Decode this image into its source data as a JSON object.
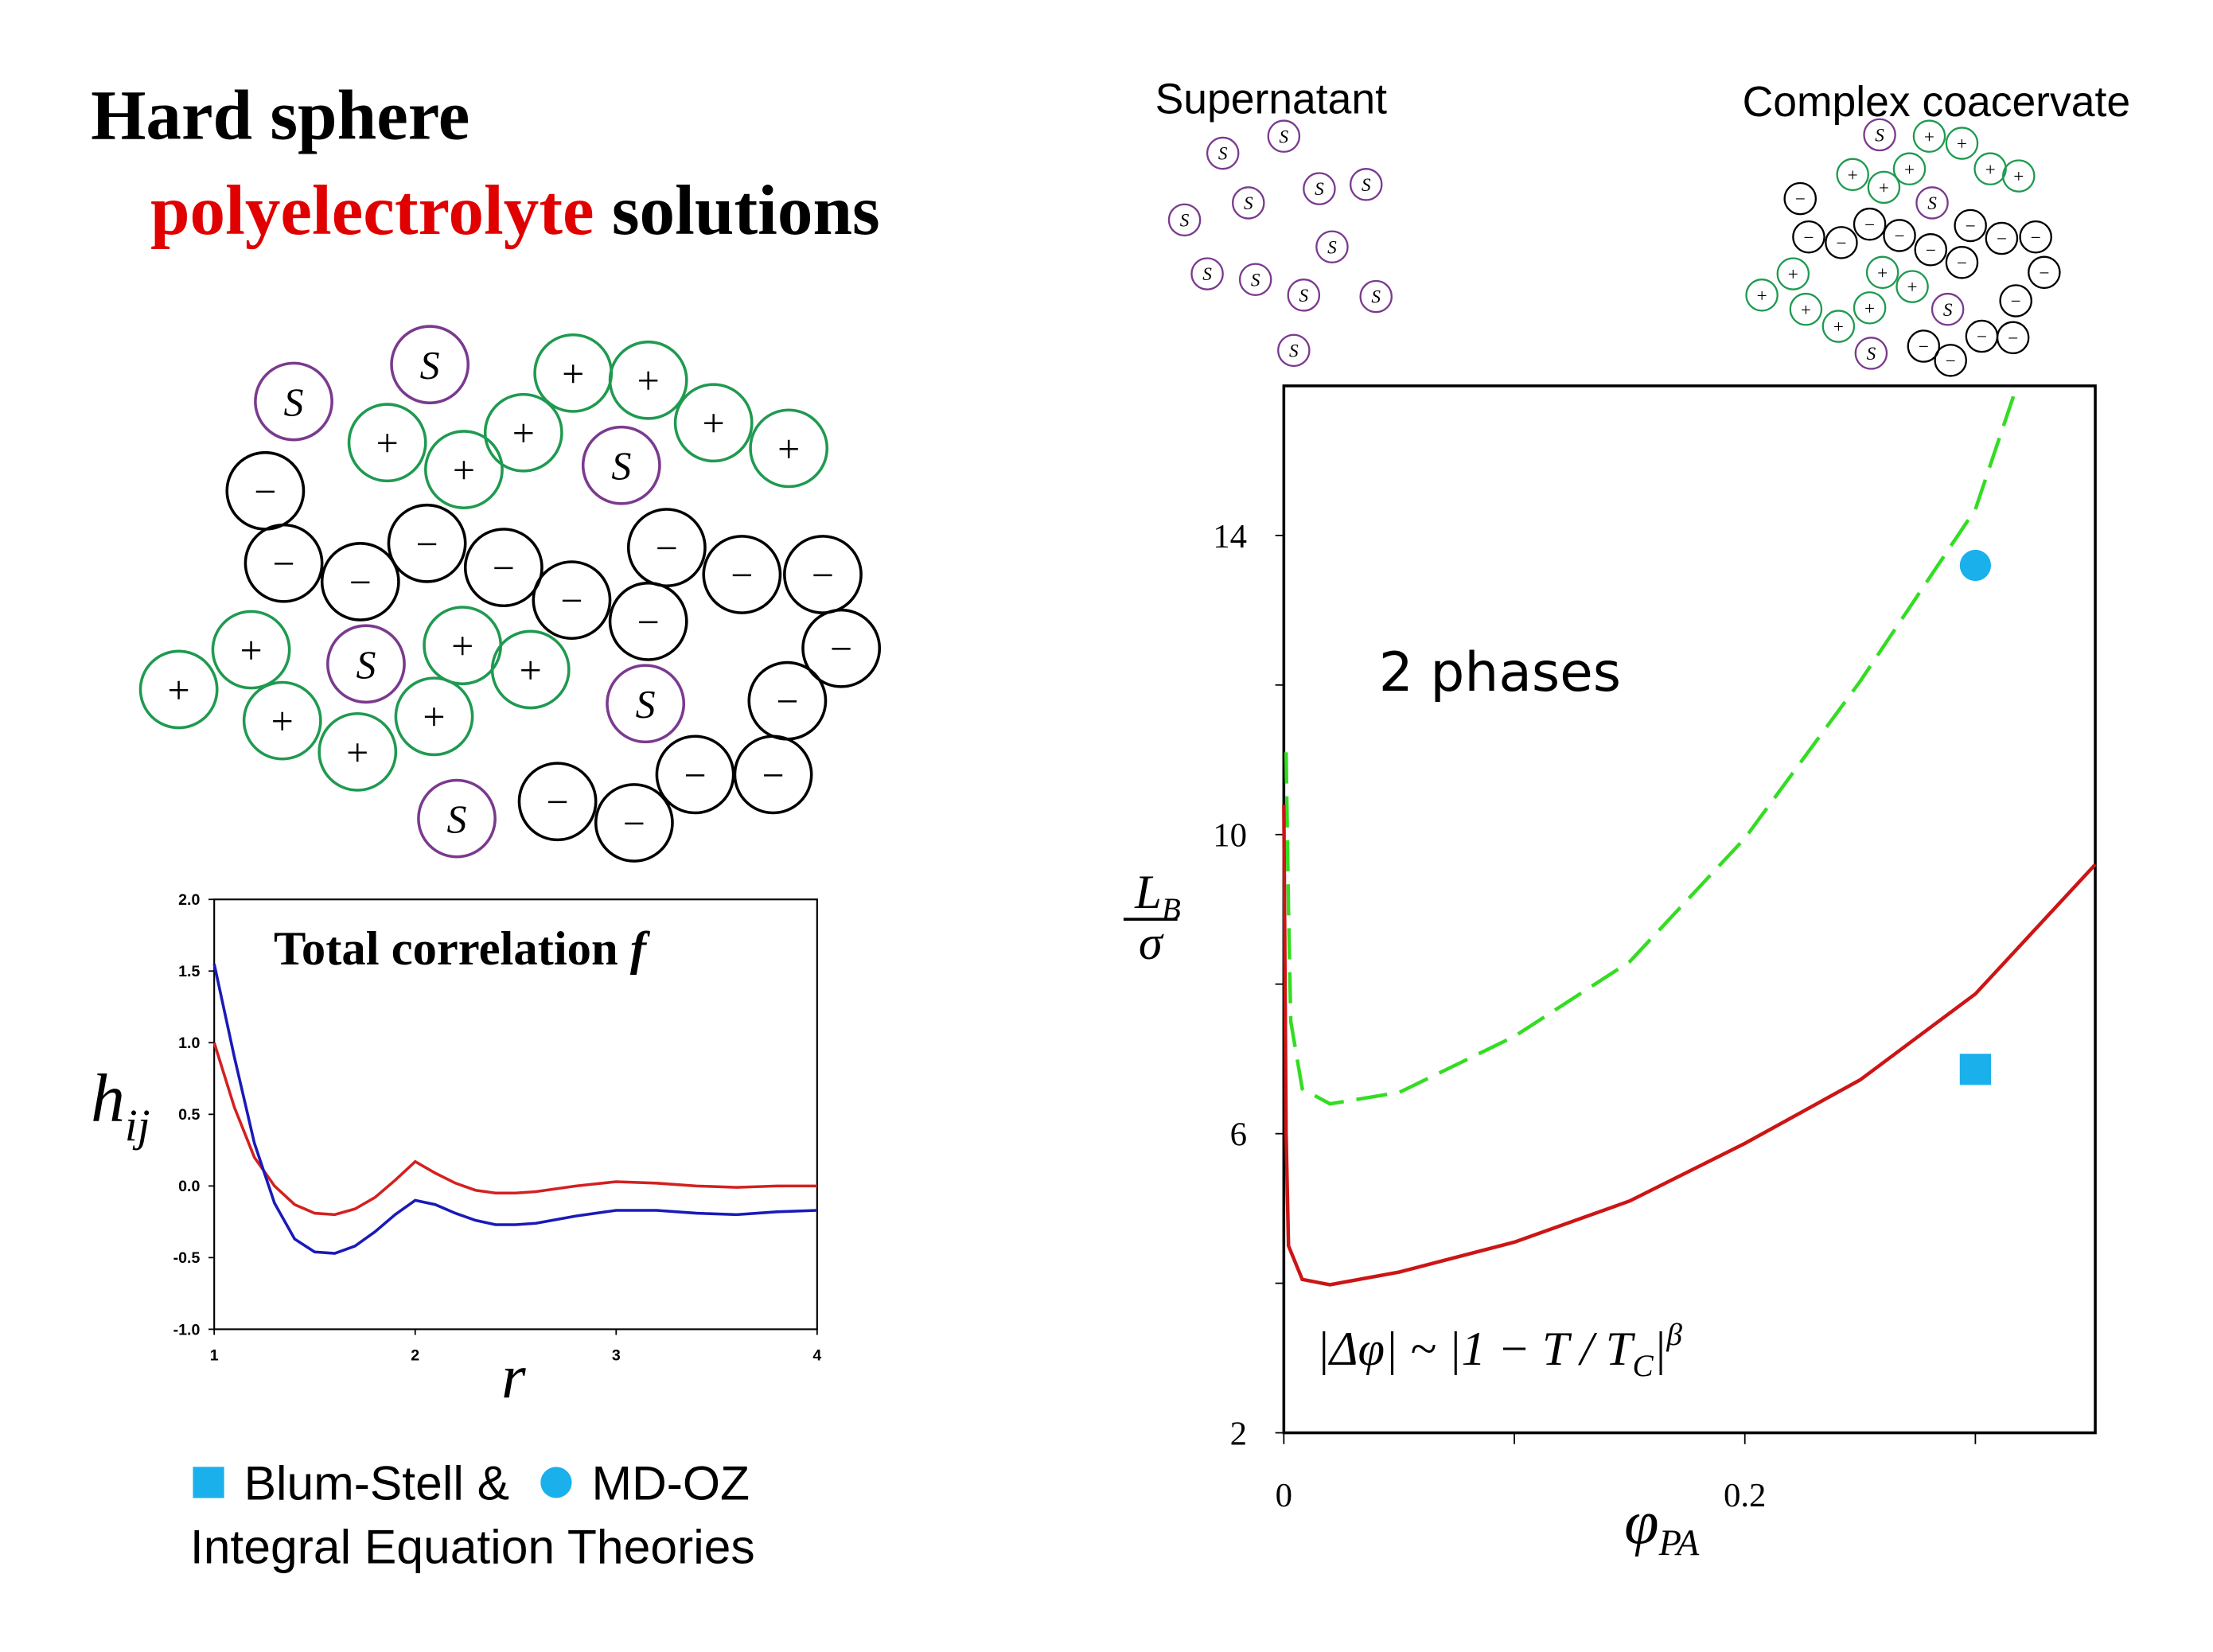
{
  "title": {
    "line1": "Hard sphere",
    "highlight": "polyelectrolyte",
    "rest": "solutions"
  },
  "phase_labels": {
    "left": "Supernatant",
    "right": "Complex coacervate"
  },
  "particle_symbols": {
    "salt": "S",
    "cation": "+",
    "anion": "−"
  },
  "chart_data": [
    {
      "type": "line",
      "title": "Total correlation",
      "title_symbol": "f",
      "xlabel": "r",
      "ylabel": "h",
      "ylabel_subscript": "ij",
      "xlim": [
        1,
        4
      ],
      "xticks": [
        1,
        2,
        3,
        4
      ],
      "ylim": [
        -1,
        2
      ],
      "yticks": [
        {
          "value": -1,
          "label": "-1.0"
        },
        {
          "value": -0.5,
          "label": "-0.5"
        },
        {
          "value": 0,
          "label": "0.0"
        },
        {
          "value": 0.5,
          "label": "0.5"
        },
        {
          "value": 1,
          "label": "1.0"
        },
        {
          "value": 1.5,
          "label": "1.5"
        },
        {
          "value": 2,
          "label": "2.0"
        }
      ],
      "series": [
        {
          "color": "#d42020",
          "x": [
            1,
            1.1,
            1.2,
            1.3,
            1.4,
            1.5,
            1.6,
            1.7,
            1.8,
            1.9,
            2.0,
            2.1,
            2.2,
            2.3,
            2.4,
            2.5,
            2.6,
            2.8,
            3.0,
            3.2,
            3.4,
            3.6,
            3.8,
            4.0
          ],
          "values": [
            1.0,
            0.55,
            0.2,
            0.0,
            -0.13,
            -0.19,
            -0.2,
            -0.16,
            -0.08,
            0.04,
            0.17,
            0.09,
            0.02,
            -0.03,
            -0.05,
            -0.05,
            -0.04,
            0.0,
            0.03,
            0.02,
            0.0,
            -0.01,
            0.0,
            0.0
          ]
        },
        {
          "color": "#1a1ab8",
          "x": [
            1,
            1.1,
            1.2,
            1.3,
            1.4,
            1.5,
            1.6,
            1.7,
            1.8,
            1.9,
            2.0,
            2.1,
            2.2,
            2.3,
            2.4,
            2.5,
            2.6,
            2.8,
            3.0,
            3.2,
            3.4,
            3.6,
            3.8,
            4.0
          ],
          "values": [
            1.55,
            0.9,
            0.3,
            -0.12,
            -0.37,
            -0.46,
            -0.47,
            -0.42,
            -0.32,
            -0.2,
            -0.1,
            -0.13,
            -0.19,
            -0.24,
            -0.27,
            -0.27,
            -0.26,
            -0.21,
            -0.17,
            -0.17,
            -0.19,
            -0.2,
            -0.18,
            -0.17
          ]
        }
      ]
    },
    {
      "type": "line",
      "annotation": "2 phases",
      "formula": {
        "main": "|Δφ| ~ |1 − T / T",
        "subscript": "C",
        "close": "|",
        "superscript": "β"
      },
      "xlabel": "φ",
      "xlabel_subscript": "PA",
      "ylabel": "L",
      "ylabel_subscript": "B",
      "ylabel_denominator": "σ",
      "xlim": [
        0,
        0.352
      ],
      "xticks": [
        0,
        0.2
      ],
      "xminor_ticks": [
        0.1,
        0.3
      ],
      "ylim": [
        2,
        16
      ],
      "yticks": [
        2,
        6,
        10,
        14
      ],
      "yminor_ticks": [
        4,
        8,
        12
      ],
      "series": [
        {
          "color": "#33dd22",
          "dashed": true,
          "x": [
            0.001,
            0.002,
            0.003,
            0.008,
            0.02,
            0.05,
            0.1,
            0.15,
            0.2,
            0.25,
            0.3,
            0.318
          ],
          "values": [
            11.1,
            9,
            7.5,
            6.6,
            6.4,
            6.55,
            7.3,
            8.3,
            9.95,
            12.05,
            14.35,
            16
          ]
        },
        {
          "color": "#cc1515",
          "dashed": false,
          "x": [
            0,
            0.001,
            0.002,
            0.008,
            0.02,
            0.05,
            0.1,
            0.15,
            0.2,
            0.25,
            0.3,
            0.352
          ],
          "values": [
            10.4,
            6,
            4.5,
            4.05,
            3.98,
            4.15,
            4.55,
            5.1,
            5.87,
            6.72,
            7.87,
            9.6
          ]
        },
        {
          "name": "Blum-Stell &",
          "marker": "square",
          "color": "#1ab0ec",
          "x": [
            0.3
          ],
          "values": [
            6.86
          ]
        },
        {
          "name": "MD-OZ",
          "marker": "circle",
          "color": "#1ab0ec",
          "x": [
            0.3
          ],
          "values": [
            13.6
          ]
        }
      ],
      "legend_note": "Integral Equation Theories"
    }
  ]
}
